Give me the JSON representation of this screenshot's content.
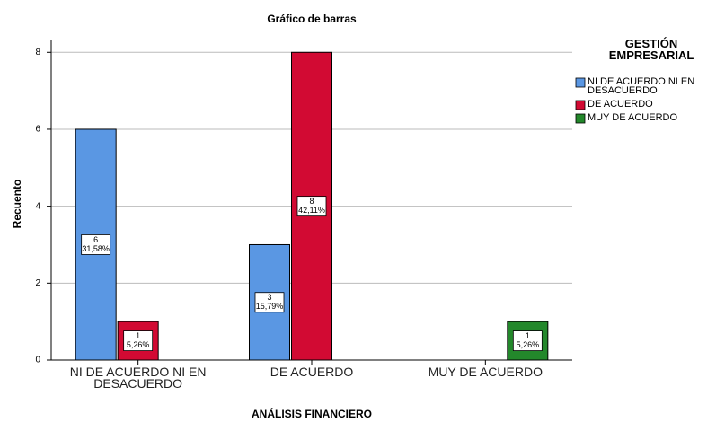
{
  "chart_data": {
    "type": "bar",
    "title": "Gráfico de barras",
    "x_label": "ANÁLISIS FINANCIERO",
    "y_label": "Recuento",
    "legend_title": "GESTIÓN EMPRESARIAL",
    "legend_position": "right",
    "categories": [
      "NI DE ACUERDO NI EN DESACUERDO",
      "DE ACUERDO",
      "MUY DE ACUERDO"
    ],
    "series": [
      {
        "name": "NI DE ACUERDO NI EN DESACUERDO",
        "color": "#5a97e3",
        "values": [
          6,
          3,
          null
        ],
        "percent_labels": [
          "31,58%",
          "15,79%",
          null
        ]
      },
      {
        "name": "DE ACUERDO",
        "color": "#d20a33",
        "values": [
          1,
          8,
          null
        ],
        "percent_labels": [
          "5,26%",
          "42,11%",
          null
        ]
      },
      {
        "name": "MUY DE ACUERDO",
        "color": "#23882b",
        "values": [
          null,
          null,
          1
        ],
        "percent_labels": [
          null,
          null,
          "5,26%"
        ]
      }
    ],
    "ylim": [
      0,
      8.1
    ],
    "yticks": [
      0,
      2,
      4,
      6,
      8
    ],
    "grid": true
  }
}
